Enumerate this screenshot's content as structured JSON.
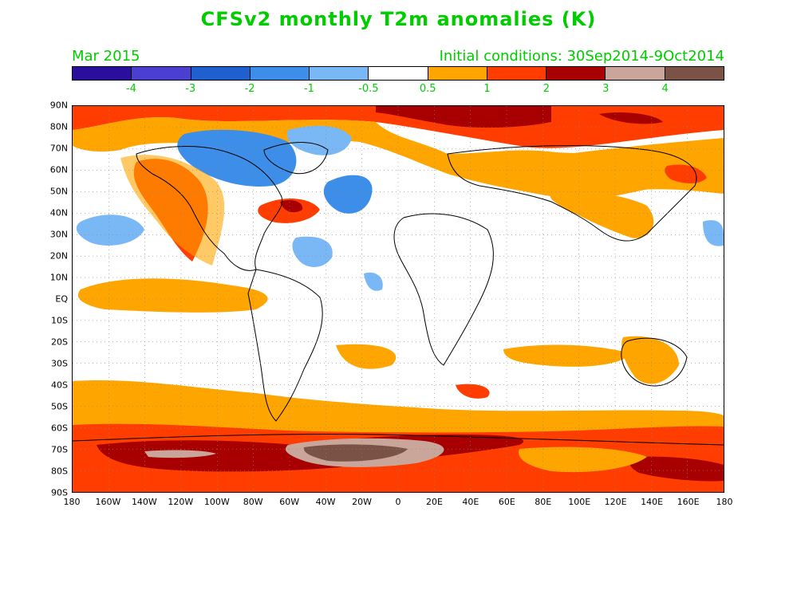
{
  "title": "CFSv2 monthly T2m anomalies (K)",
  "subtitle_left": "Mar 2015",
  "subtitle_right": "Initial conditions: 30Sep2014-9Oct2014",
  "colorbar": {
    "colors": [
      "#2a0f9e",
      "#4a3fd0",
      "#1f5fcf",
      "#3d8ee8",
      "#7ab8f5",
      "#ffffff",
      "#ffa500",
      "#ff3d00",
      "#a80000",
      "#c9a59a",
      "#7a5346"
    ],
    "labels": [
      "-4",
      "-3",
      "-2",
      "-1",
      "-0.5",
      "0.5",
      "1",
      "2",
      "3",
      "4"
    ]
  },
  "lat_labels": [
    "90N",
    "80N",
    "70N",
    "60N",
    "50N",
    "40N",
    "30N",
    "20N",
    "10N",
    "EQ",
    "10S",
    "20S",
    "30S",
    "40S",
    "50S",
    "60S",
    "70S",
    "80S",
    "90S"
  ],
  "lon_labels": [
    "180",
    "160W",
    "140W",
    "120W",
    "100W",
    "80W",
    "60W",
    "40W",
    "20W",
    "0",
    "20E",
    "40E",
    "60E",
    "80E",
    "100E",
    "120E",
    "140E",
    "160E",
    "180"
  ]
}
